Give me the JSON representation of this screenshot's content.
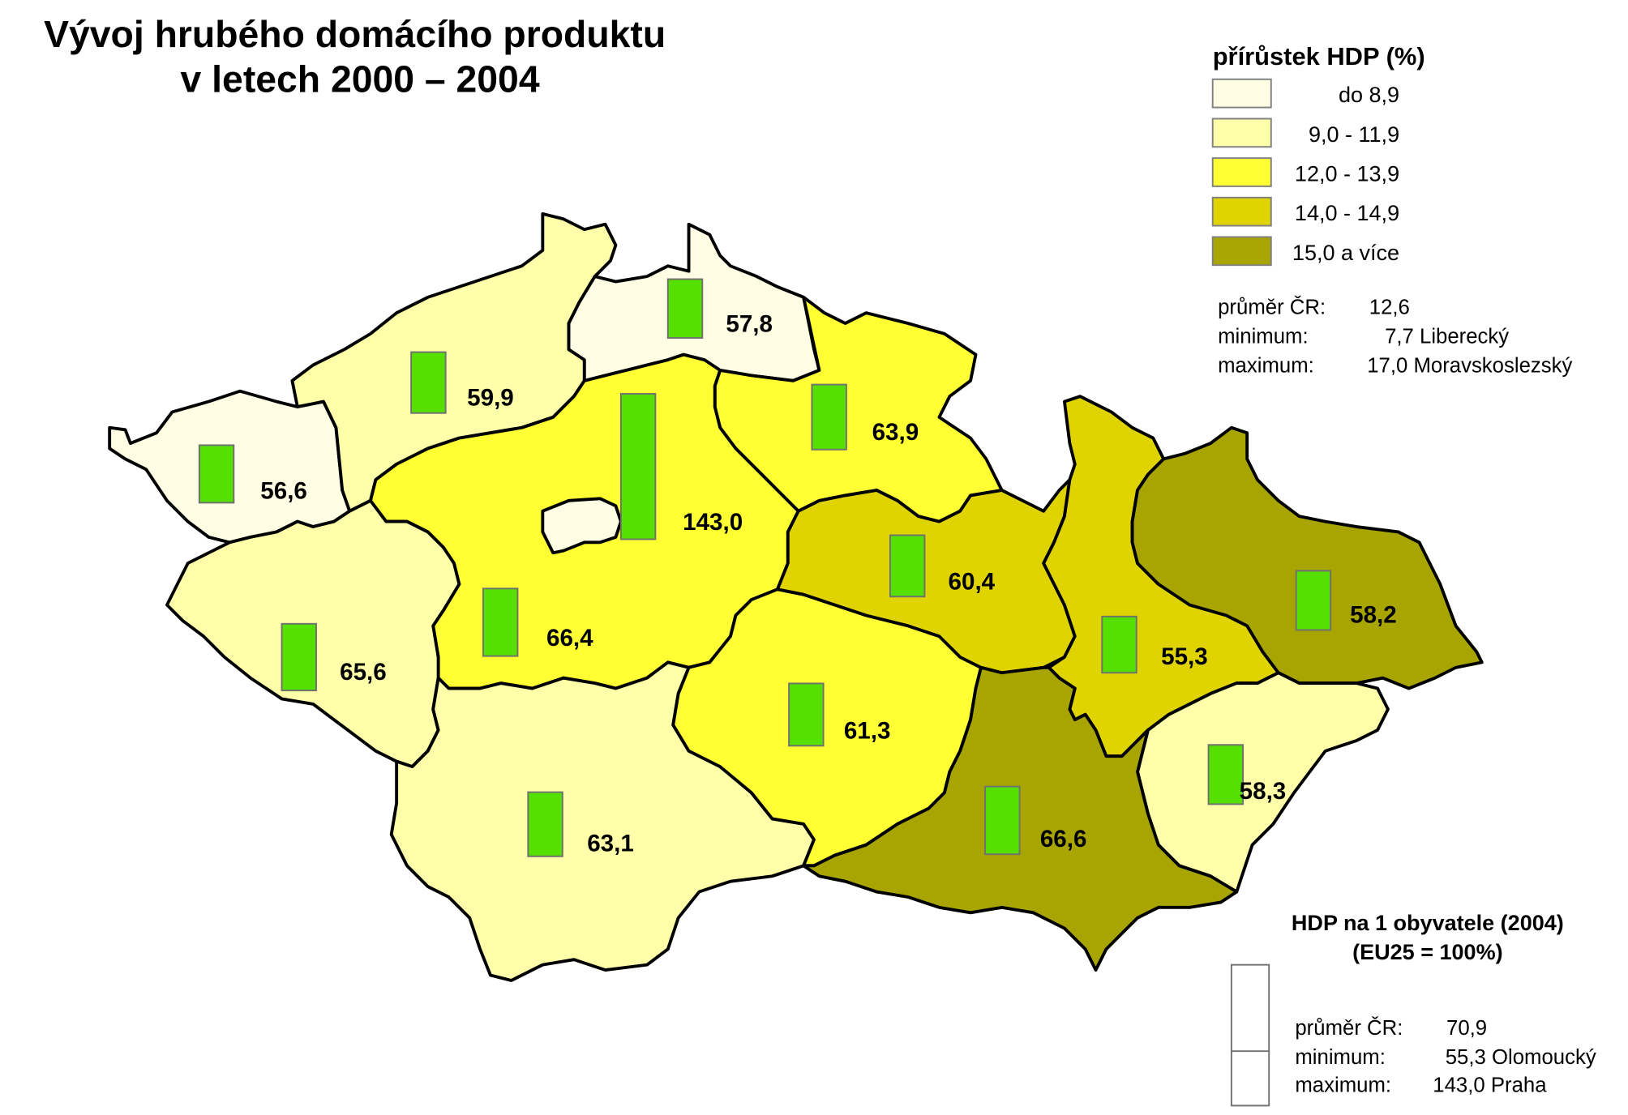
{
  "title": {
    "line1": "Vývoj hrubého domácího produktu",
    "line2": "v letech 2000 – 2004"
  },
  "growth_legend": {
    "title": "přírůstek HDP (%)",
    "classes": [
      {
        "label": "do 8,9",
        "color": "#fffde4"
      },
      {
        "label": "9,0 - 11,9",
        "color": "#ffffaa"
      },
      {
        "label": "12,0 - 13,9",
        "color": "#ffff33"
      },
      {
        "label": "14,0 - 14,9",
        "color": "#e0d400"
      },
      {
        "label": "15,0 a více",
        "color": "#a8a400"
      }
    ],
    "stats": [
      {
        "label": "průměr ČR:",
        "value": "12,6"
      },
      {
        "label": "minimum:",
        "value": "7,7 Liberecký"
      },
      {
        "label": "maximum:",
        "value": "17,0 Moravskoslezský"
      }
    ]
  },
  "gdp_legend": {
    "title_line1": "HDP na 1 obyvatele (2004)",
    "title_line2": "(EU25 = 100%)",
    "bar_color": "#55e000",
    "scale_max": 143.0,
    "scale_mark": 55.3,
    "stats": [
      {
        "label": "průměr ČR:",
        "value": "70,9"
      },
      {
        "label": "minimum:",
        "value": "55,3 Olomoucký"
      },
      {
        "label": "maximum:",
        "value": "143,0 Praha"
      }
    ]
  },
  "chart_data": {
    "type": "choropleth-with-bars",
    "regions": [
      {
        "growth_class": 0,
        "gdp_per_capita": 56.6,
        "label": "56,6"
      },
      {
        "growth_class": 1,
        "gdp_per_capita": 59.9,
        "label": "59,9"
      },
      {
        "growth_class": 0,
        "gdp_per_capita": 57.8,
        "label": "57,8"
      },
      {
        "growth_class": 2,
        "gdp_per_capita": 63.9,
        "label": "63,9"
      },
      {
        "growth_class": 2,
        "gdp_per_capita": 66.4,
        "label": "66,4"
      },
      {
        "growth_class": 0,
        "gdp_per_capita": 143.0,
        "label": "143,0"
      },
      {
        "growth_class": 1,
        "gdp_per_capita": 65.6,
        "label": "65,6"
      },
      {
        "growth_class": 1,
        "gdp_per_capita": 63.1,
        "label": "63,1"
      },
      {
        "growth_class": 2,
        "gdp_per_capita": 61.3,
        "label": "61,3"
      },
      {
        "growth_class": 3,
        "gdp_per_capita": 60.4,
        "label": "60,4"
      },
      {
        "growth_class": 3,
        "gdp_per_capita": 55.3,
        "label": "55,3"
      },
      {
        "growth_class": 4,
        "gdp_per_capita": 58.2,
        "label": "58,2"
      },
      {
        "growth_class": 1,
        "gdp_per_capita": 58.3,
        "label": "58,3"
      },
      {
        "growth_class": 4,
        "gdp_per_capita": 66.6,
        "label": "66,6"
      }
    ]
  }
}
